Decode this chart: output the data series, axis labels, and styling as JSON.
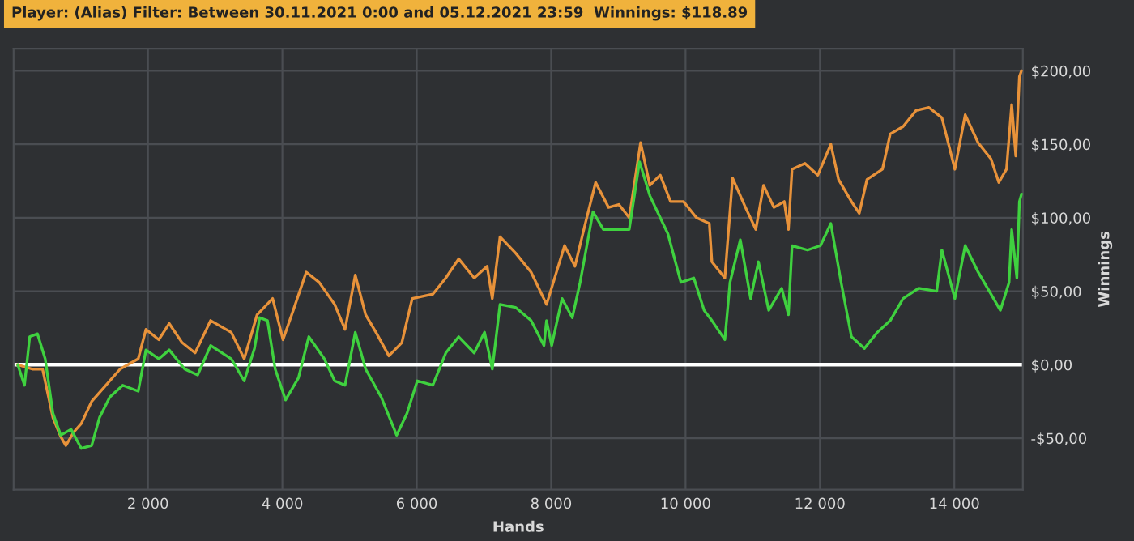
{
  "chart_data": {
    "type": "line",
    "title": "Player: (Alias) Filter: Between 30.11.2021 0:00 and 05.12.2021 23:59  Winnings: $118.89",
    "xlabel": "Hands",
    "ylabel": "Winnings",
    "xlim": [
      0,
      15020
    ],
    "xticks": [
      {
        "value": 2000,
        "label": "2 000"
      },
      {
        "value": 4000,
        "label": "4 000"
      },
      {
        "value": 6000,
        "label": "6 000"
      },
      {
        "value": 8000,
        "label": "8 000"
      },
      {
        "value": 10000,
        "label": "10 000"
      },
      {
        "value": 12000,
        "label": "12 000"
      },
      {
        "value": 14000,
        "label": "14 000"
      }
    ],
    "ylim": [
      -85,
      215
    ],
    "yticks": [
      {
        "value": -50,
        "label": "-$50,00"
      },
      {
        "value": 0,
        "label": "$0,00"
      },
      {
        "value": 50,
        "label": "$50,00"
      },
      {
        "value": 100,
        "label": "$100,00"
      },
      {
        "value": 150,
        "label": "$150,00"
      },
      {
        "value": 200,
        "label": "$200,00"
      }
    ],
    "grid": true,
    "legend": false,
    "marker": "none",
    "line_style": "solid",
    "ref_lines": [
      {
        "axis": "y",
        "value": 0,
        "color": "#ffffff",
        "line_style": "solid"
      }
    ],
    "series": [
      {
        "color": "#e8923a",
        "x": [
          62,
          278,
          431,
          585,
          701,
          778,
          893,
          1008,
          1162,
          1393,
          1585,
          1855,
          1970,
          2162,
          2316,
          2508,
          2701,
          2932,
          3239,
          3432,
          3624,
          3855,
          4009,
          4162,
          4355,
          4547,
          4778,
          4932,
          5085,
          5239,
          5393,
          5585,
          5778,
          5932,
          6239,
          6432,
          6624,
          6855,
          7047,
          7124,
          7239,
          7470,
          7701,
          7932,
          8200,
          8354,
          8508,
          8662,
          8854,
          9008,
          9162,
          9331,
          9469,
          9623,
          9777,
          9969,
          10162,
          10354,
          10392,
          10585,
          10700,
          10892,
          11046,
          11162,
          11315,
          11469,
          11531,
          11585,
          11777,
          11969,
          12162,
          12277,
          12469,
          12585,
          12700,
          12931,
          13046,
          13238,
          13431,
          13623,
          13815,
          14008,
          14162,
          14354,
          14546,
          14662,
          14777,
          14854,
          14915,
          14969,
          15000
        ],
        "values": [
          0,
          -3,
          -3,
          -36,
          -49,
          -55,
          -46,
          -40,
          -25,
          -13,
          -3,
          4,
          24,
          17,
          28,
          15,
          8,
          30,
          22,
          4,
          34,
          45,
          17,
          37,
          63,
          56,
          41,
          24,
          61,
          34,
          22,
          6,
          15,
          45,
          48,
          59,
          72,
          59,
          67,
          45,
          87,
          76,
          63,
          41,
          81,
          67,
          96,
          124,
          107,
          109,
          100,
          151,
          122,
          129,
          111,
          111,
          100,
          96,
          70,
          59,
          127,
          107,
          92,
          122,
          107,
          111,
          92,
          133,
          137,
          129,
          150,
          126,
          111,
          103,
          126,
          133,
          157,
          162,
          173,
          175,
          168,
          133,
          170,
          151,
          140,
          124,
          133,
          177,
          142,
          196,
          200
        ]
      },
      {
        "color": "#3fd13f",
        "x": [
          62,
          162,
          240,
          355,
          470,
          585,
          701,
          855,
          1008,
          1162,
          1278,
          1432,
          1624,
          1855,
          1970,
          2162,
          2316,
          2547,
          2739,
          2932,
          3239,
          3432,
          3585,
          3662,
          3778,
          3893,
          4047,
          4239,
          4393,
          4624,
          4778,
          4932,
          5085,
          5239,
          5470,
          5701,
          5855,
          6008,
          6239,
          6432,
          6624,
          6855,
          7009,
          7124,
          7239,
          7470,
          7701,
          7893,
          7931,
          8008,
          8162,
          8315,
          8431,
          8623,
          8777,
          8969,
          9162,
          9315,
          9469,
          9623,
          9738,
          9931,
          10123,
          10277,
          10392,
          10585,
          10662,
          10815,
          10969,
          11085,
          11238,
          11431,
          11531,
          11585,
          11815,
          12008,
          12162,
          12315,
          12469,
          12662,
          12854,
          13046,
          13238,
          13469,
          13738,
          13815,
          14008,
          14162,
          14354,
          14546,
          14685,
          14815,
          14854,
          14931,
          14969,
          15000
        ],
        "values": [
          0,
          -14,
          19,
          21,
          4,
          -33,
          -48,
          -44,
          -57,
          -55,
          -36,
          -22,
          -14,
          -18,
          10,
          4,
          10,
          -3,
          -7,
          13,
          4,
          -11,
          11,
          32,
          30,
          -3,
          -24,
          -9,
          19,
          4,
          -11,
          -14,
          22,
          -3,
          -22,
          -48,
          -33,
          -11,
          -14,
          8,
          19,
          8,
          22,
          -3,
          41,
          39,
          30,
          13,
          30,
          13,
          45,
          32,
          56,
          104,
          92,
          92,
          92,
          138,
          115,
          100,
          89,
          56,
          59,
          37,
          30,
          17,
          56,
          85,
          45,
          70,
          37,
          52,
          34,
          81,
          78,
          81,
          96,
          56,
          19,
          11,
          22,
          30,
          45,
          52,
          50,
          78,
          45,
          81,
          63,
          48,
          37,
          56,
          92,
          59,
          111,
          116
        ]
      }
    ]
  }
}
